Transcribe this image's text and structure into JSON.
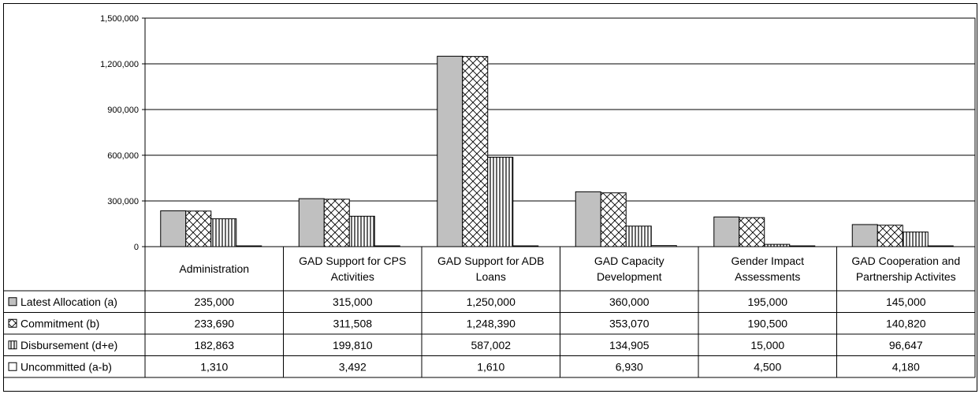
{
  "chart_data": {
    "type": "bar",
    "categories": [
      [
        "Administration"
      ],
      [
        "GAD Support for CPS",
        "Activities"
      ],
      [
        "GAD Support for ADB",
        "Loans"
      ],
      [
        "GAD Capacity",
        "Development"
      ],
      [
        "Gender Impact",
        "Assessments"
      ],
      [
        "GAD Cooperation and",
        "Partnership Activites"
      ]
    ],
    "series": [
      {
        "name": "Latest Allocation (a)",
        "pattern": "solid",
        "values": [
          235000,
          315000,
          1250000,
          360000,
          195000,
          145000
        ],
        "display": [
          "235,000",
          "315,000",
          "1,250,000",
          "360,000",
          "195,000",
          "145,000"
        ]
      },
      {
        "name": "Commitment (b)",
        "pattern": "crosshatch",
        "values": [
          233690,
          311508,
          1248390,
          353070,
          190500,
          140820
        ],
        "display": [
          "233,690",
          "311,508",
          "1,248,390",
          "353,070",
          "190,500",
          "140,820"
        ]
      },
      {
        "name": "Disbursement (d+e)",
        "pattern": "vertical-lines",
        "values": [
          182863,
          199810,
          587002,
          134905,
          15000,
          96647
        ],
        "display": [
          "182,863",
          "199,810",
          "587,002",
          "134,905",
          "15,000",
          "96,647"
        ]
      },
      {
        "name": "Uncommitted (a-b)",
        "pattern": "white",
        "values": [
          1310,
          3492,
          1610,
          6930,
          4500,
          4180
        ],
        "display": [
          "1,310",
          "3,492",
          "1,610",
          "6,930",
          "4,500",
          "4,180"
        ]
      }
    ],
    "yticks": [
      0,
      300000,
      600000,
      900000,
      1200000,
      1500000
    ],
    "ytick_labels": [
      "0",
      "300,000",
      "600,000",
      "900,000",
      "1,200,000",
      "1,500,000"
    ],
    "ylim": [
      0,
      1500000
    ],
    "grid": true,
    "legend": "data-table",
    "colors": {
      "solid": "#c0c0c0",
      "border": "#000000",
      "background": "#ffffff"
    }
  }
}
